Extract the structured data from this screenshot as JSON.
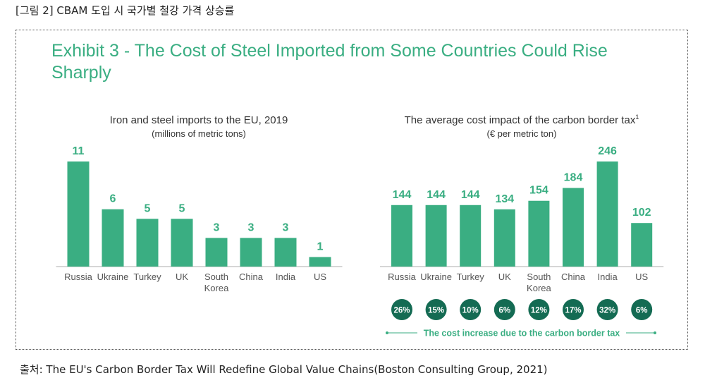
{
  "caption": "[그림 2] CBAM 도입 시 국가별 철강 가격 상승률",
  "exhibit_title": "Exhibit 3 - The Cost of Steel Imported from Some Countries Could Rise Sharply",
  "source": "출처: The EU's Carbon Border Tax Will Redefine Global Value Chains(Boston Consulting Group, 2021)",
  "colors": {
    "bar": "#3aae82",
    "badge": "#146b53",
    "title": "#3aae82",
    "axis": "#c8c8c8"
  },
  "chart_data": [
    {
      "type": "bar",
      "title": "Iron and steel imports to the EU, 2019",
      "subtitle": "(millions of metric tons)",
      "categories": [
        "Russia",
        "Ukraine",
        "Turkey",
        "UK",
        "South Korea",
        "China",
        "India",
        "US"
      ],
      "values": [
        11,
        6,
        5,
        5,
        3,
        3,
        3,
        1
      ],
      "ylim": [
        0,
        11
      ],
      "grid": false
    },
    {
      "type": "bar",
      "title": "The average cost impact of the carbon border tax",
      "title_superscript": "1",
      "subtitle": "(€ per metric ton)",
      "categories": [
        "Russia",
        "Ukraine",
        "Turkey",
        "UK",
        "South Korea",
        "China",
        "India",
        "US"
      ],
      "values": [
        144,
        144,
        144,
        134,
        154,
        184,
        246,
        102
      ],
      "cost_increase_labels": [
        "26%",
        "15%",
        "10%",
        "6%",
        "12%",
        "17%",
        "32%",
        "6%"
      ],
      "cost_increase_caption": "The cost increase due to the carbon border tax",
      "ylim": [
        0,
        246
      ],
      "grid": false
    }
  ]
}
